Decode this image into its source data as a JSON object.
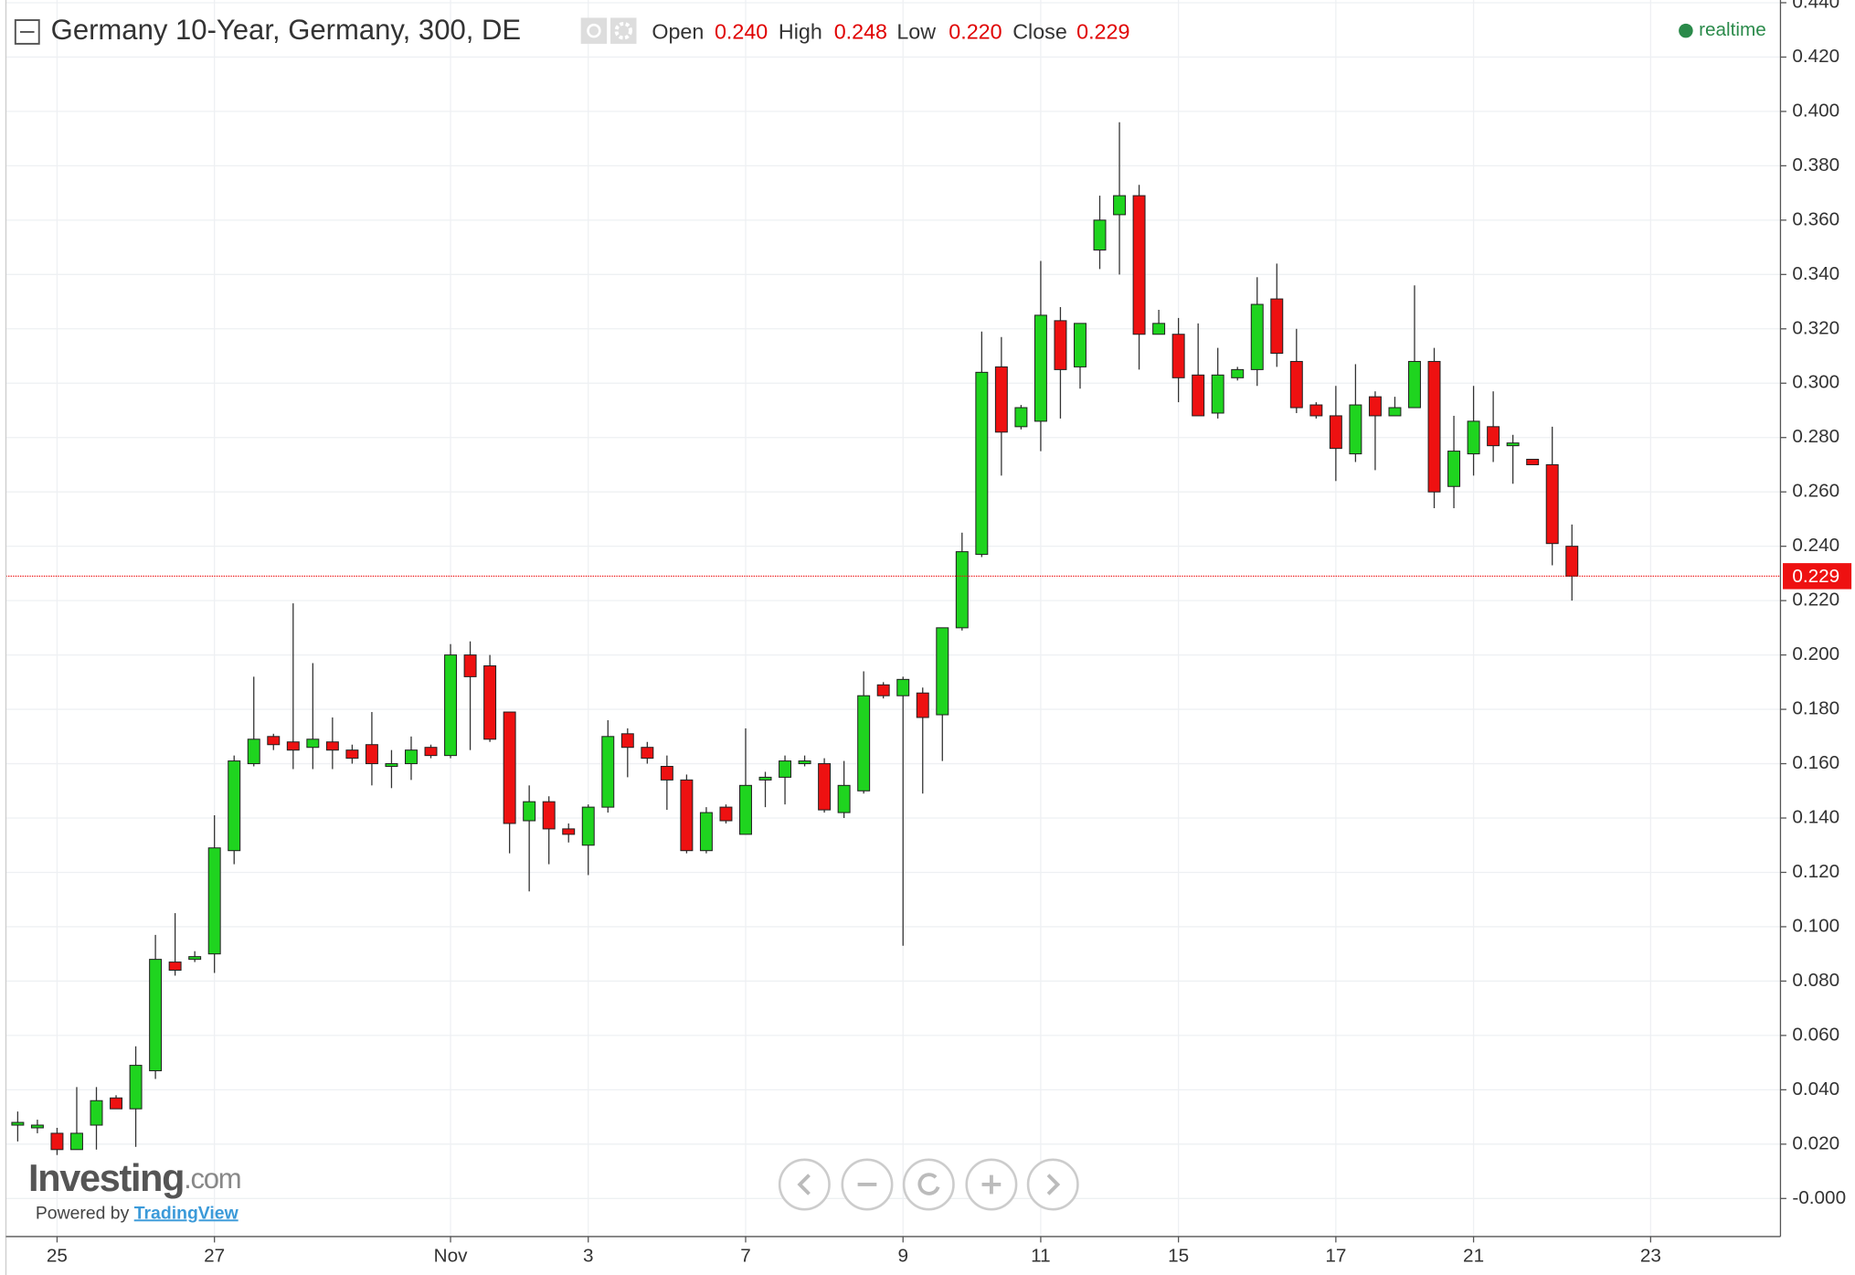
{
  "chart_data": {
    "type": "candlestick",
    "title": "Germany 10-Year, Germany, 300, DE",
    "ohlc_header": [
      {
        "name": "Open",
        "value": "0.240"
      },
      {
        "name": "High",
        "value": "0.248"
      },
      {
        "name": "Low",
        "value": "0.220"
      },
      {
        "name": "Close",
        "value": "0.229"
      }
    ],
    "status": "realtime",
    "open": [
      0.027,
      0.026,
      0.024,
      0.018,
      0.027,
      0.037,
      0.033,
      0.047,
      0.087,
      0.088,
      0.09,
      0.128,
      0.16,
      0.17,
      0.168,
      0.166,
      0.168,
      0.165,
      0.167,
      0.159,
      0.16,
      0.166,
      0.163,
      0.2,
      0.196,
      0.179,
      0.139,
      0.146,
      0.136,
      0.13,
      0.144,
      0.171,
      0.166,
      0.159,
      0.154,
      0.128,
      0.144,
      0.134,
      0.154,
      0.155,
      0.16,
      0.16,
      0.142,
      0.15,
      0.189,
      0.185,
      0.186,
      0.178,
      0.21,
      0.237,
      0.306,
      0.284,
      0.286,
      0.323,
      0.306,
      0.349,
      0.362,
      0.369,
      0.318,
      0.318,
      0.303,
      0.289,
      0.302,
      0.305,
      0.331,
      0.308,
      0.292,
      0.288,
      0.274,
      0.295,
      0.288,
      0.291,
      0.308,
      0.262,
      0.274,
      0.284,
      0.277,
      0.272,
      0.27,
      0.24
    ],
    "high": [
      0.032,
      0.029,
      0.026,
      0.041,
      0.041,
      0.038,
      0.056,
      0.097,
      0.105,
      0.091,
      0.141,
      0.163,
      0.192,
      0.171,
      0.219,
      0.197,
      0.177,
      0.167,
      0.179,
      0.165,
      0.17,
      0.167,
      0.204,
      0.205,
      0.2,
      0.179,
      0.152,
      0.148,
      0.138,
      0.145,
      0.176,
      0.173,
      0.168,
      0.163,
      0.156,
      0.144,
      0.145,
      0.173,
      0.157,
      0.163,
      0.163,
      0.162,
      0.161,
      0.194,
      0.19,
      0.192,
      0.188,
      0.21,
      0.245,
      0.319,
      0.317,
      0.292,
      0.345,
      0.328,
      0.322,
      0.369,
      0.396,
      0.373,
      0.327,
      0.324,
      0.322,
      0.313,
      0.306,
      0.339,
      0.344,
      0.32,
      0.293,
      0.299,
      0.307,
      0.297,
      0.295,
      0.336,
      0.313,
      0.288,
      0.299,
      0.297,
      0.281,
      0.272,
      0.284,
      0.248
    ],
    "low": [
      0.021,
      0.024,
      0.016,
      0.018,
      0.018,
      0.033,
      0.019,
      0.044,
      0.082,
      0.087,
      0.083,
      0.123,
      0.159,
      0.165,
      0.158,
      0.158,
      0.158,
      0.16,
      0.152,
      0.151,
      0.154,
      0.162,
      0.162,
      0.165,
      0.168,
      0.127,
      0.113,
      0.123,
      0.131,
      0.119,
      0.142,
      0.155,
      0.16,
      0.143,
      0.127,
      0.127,
      0.138,
      0.134,
      0.144,
      0.145,
      0.159,
      0.142,
      0.14,
      0.149,
      0.184,
      0.093,
      0.149,
      0.161,
      0.209,
      0.236,
      0.266,
      0.283,
      0.275,
      0.287,
      0.298,
      0.342,
      0.34,
      0.305,
      0.318,
      0.293,
      0.288,
      0.287,
      0.301,
      0.299,
      0.306,
      0.289,
      0.287,
      0.264,
      0.271,
      0.268,
      0.288,
      0.291,
      0.254,
      0.254,
      0.266,
      0.271,
      0.263,
      0.27,
      0.233,
      0.22
    ],
    "close": [
      0.028,
      0.027,
      0.018,
      0.024,
      0.036,
      0.033,
      0.049,
      0.088,
      0.084,
      0.089,
      0.129,
      0.161,
      0.169,
      0.167,
      0.165,
      0.169,
      0.165,
      0.162,
      0.16,
      0.16,
      0.165,
      0.163,
      0.2,
      0.192,
      0.169,
      0.138,
      0.146,
      0.136,
      0.134,
      0.144,
      0.17,
      0.166,
      0.162,
      0.154,
      0.128,
      0.142,
      0.139,
      0.152,
      0.155,
      0.161,
      0.161,
      0.143,
      0.152,
      0.185,
      0.185,
      0.191,
      0.177,
      0.21,
      0.238,
      0.304,
      0.282,
      0.291,
      0.325,
      0.305,
      0.322,
      0.36,
      0.369,
      0.318,
      0.322,
      0.302,
      0.288,
      0.303,
      0.305,
      0.329,
      0.311,
      0.291,
      0.288,
      0.276,
      0.292,
      0.288,
      0.291,
      0.308,
      0.26,
      0.275,
      0.286,
      0.277,
      0.278,
      0.27,
      0.241,
      0.229
    ],
    "up_color": "#1fd41f",
    "down_color": "#ee1111",
    "last_price": {
      "value": 0.229,
      "label": "0.229"
    },
    "xlim": [
      -0.6,
      89.6
    ],
    "xticks": [
      {
        "value": 2,
        "label": "25"
      },
      {
        "value": 10,
        "label": "27"
      },
      {
        "value": 22,
        "label": "Nov"
      },
      {
        "value": 29,
        "label": "3"
      },
      {
        "value": 37,
        "label": "7"
      },
      {
        "value": 45,
        "label": "9"
      },
      {
        "value": 52,
        "label": "11"
      },
      {
        "value": 59,
        "label": "15"
      },
      {
        "value": 67,
        "label": "17"
      },
      {
        "value": 74,
        "label": "21"
      },
      {
        "value": 83,
        "label": "23"
      }
    ],
    "ylim": [
      -0.014,
      0.441
    ],
    "yticks": [
      {
        "value": 0,
        "label": "-0.000"
      },
      {
        "value": 0.02,
        "label": "0.020"
      },
      {
        "value": 0.04,
        "label": "0.040"
      },
      {
        "value": 0.06,
        "label": "0.060"
      },
      {
        "value": 0.08,
        "label": "0.080"
      },
      {
        "value": 0.1,
        "label": "0.100"
      },
      {
        "value": 0.12,
        "label": "0.120"
      },
      {
        "value": 0.14,
        "label": "0.140"
      },
      {
        "value": 0.16,
        "label": "0.160"
      },
      {
        "value": 0.18,
        "label": "0.180"
      },
      {
        "value": 0.2,
        "label": "0.200"
      },
      {
        "value": 0.22,
        "label": "0.220"
      },
      {
        "value": 0.24,
        "label": "0.240"
      },
      {
        "value": 0.26,
        "label": "0.260"
      },
      {
        "value": 0.28,
        "label": "0.280"
      },
      {
        "value": 0.3,
        "label": "0.300"
      },
      {
        "value": 0.32,
        "label": "0.320"
      },
      {
        "value": 0.34,
        "label": "0.340"
      },
      {
        "value": 0.36,
        "label": "0.360"
      },
      {
        "value": 0.38,
        "label": "0.380"
      },
      {
        "value": 0.4,
        "label": "0.400"
      },
      {
        "value": 0.42,
        "label": "0.420"
      },
      {
        "value": 0.44,
        "label": "0.440"
      }
    ],
    "grid": true
  },
  "branding": {
    "logo": "Investing",
    "logo_suffix": ".com",
    "powered_by": "Powered by",
    "link": "TradingView"
  }
}
